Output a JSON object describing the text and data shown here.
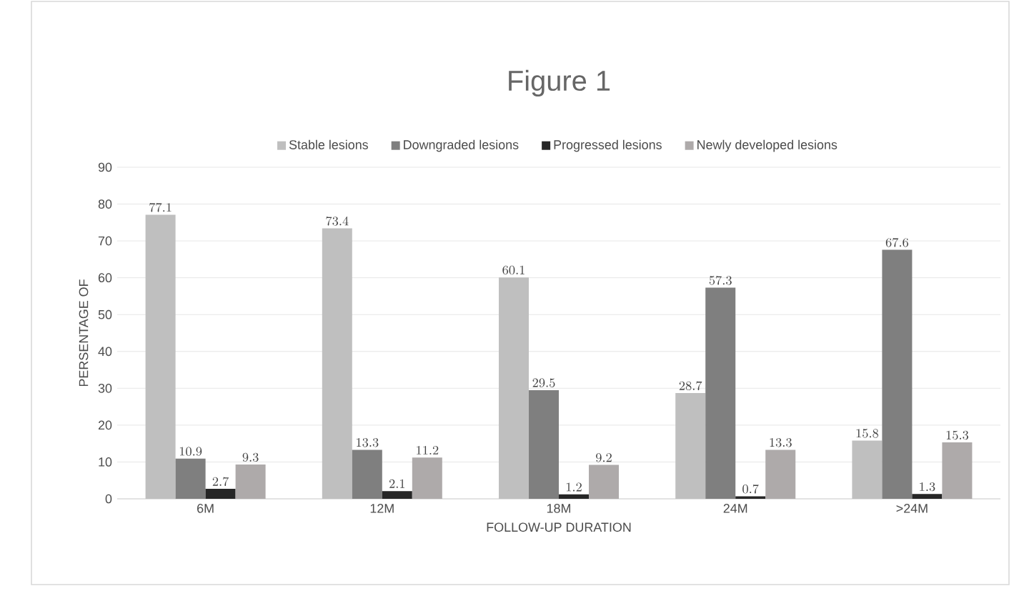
{
  "chart_data": {
    "type": "bar",
    "title": "Figure 1",
    "xlabel": "FOLLOW-UP DURATION",
    "ylabel": "PERSENTAGE OF",
    "categories": [
      "6M",
      "12M",
      "18M",
      "24M",
      ">24M"
    ],
    "series": [
      {
        "name": "Stable lesions",
        "color": "#bfbfbf",
        "values": [
          77.1,
          73.4,
          60.1,
          28.7,
          15.8
        ]
      },
      {
        "name": "Downgraded lesions",
        "color": "#7f7f7f",
        "values": [
          10.9,
          13.3,
          29.5,
          57.3,
          67.6
        ]
      },
      {
        "name": "Progressed lesions",
        "color": "#262626",
        "values": [
          2.7,
          2.1,
          1.2,
          0.7,
          1.3
        ]
      },
      {
        "name": "Newly developed lesions",
        "color": "#aeaaaa",
        "values": [
          9.3,
          11.2,
          9.2,
          13.3,
          15.3
        ]
      }
    ],
    "ylim": [
      0,
      90
    ],
    "yticks": [
      0,
      10,
      20,
      30,
      40,
      50,
      60,
      70,
      80,
      90
    ],
    "grid": "y",
    "legend": "top",
    "data_labels": true
  }
}
